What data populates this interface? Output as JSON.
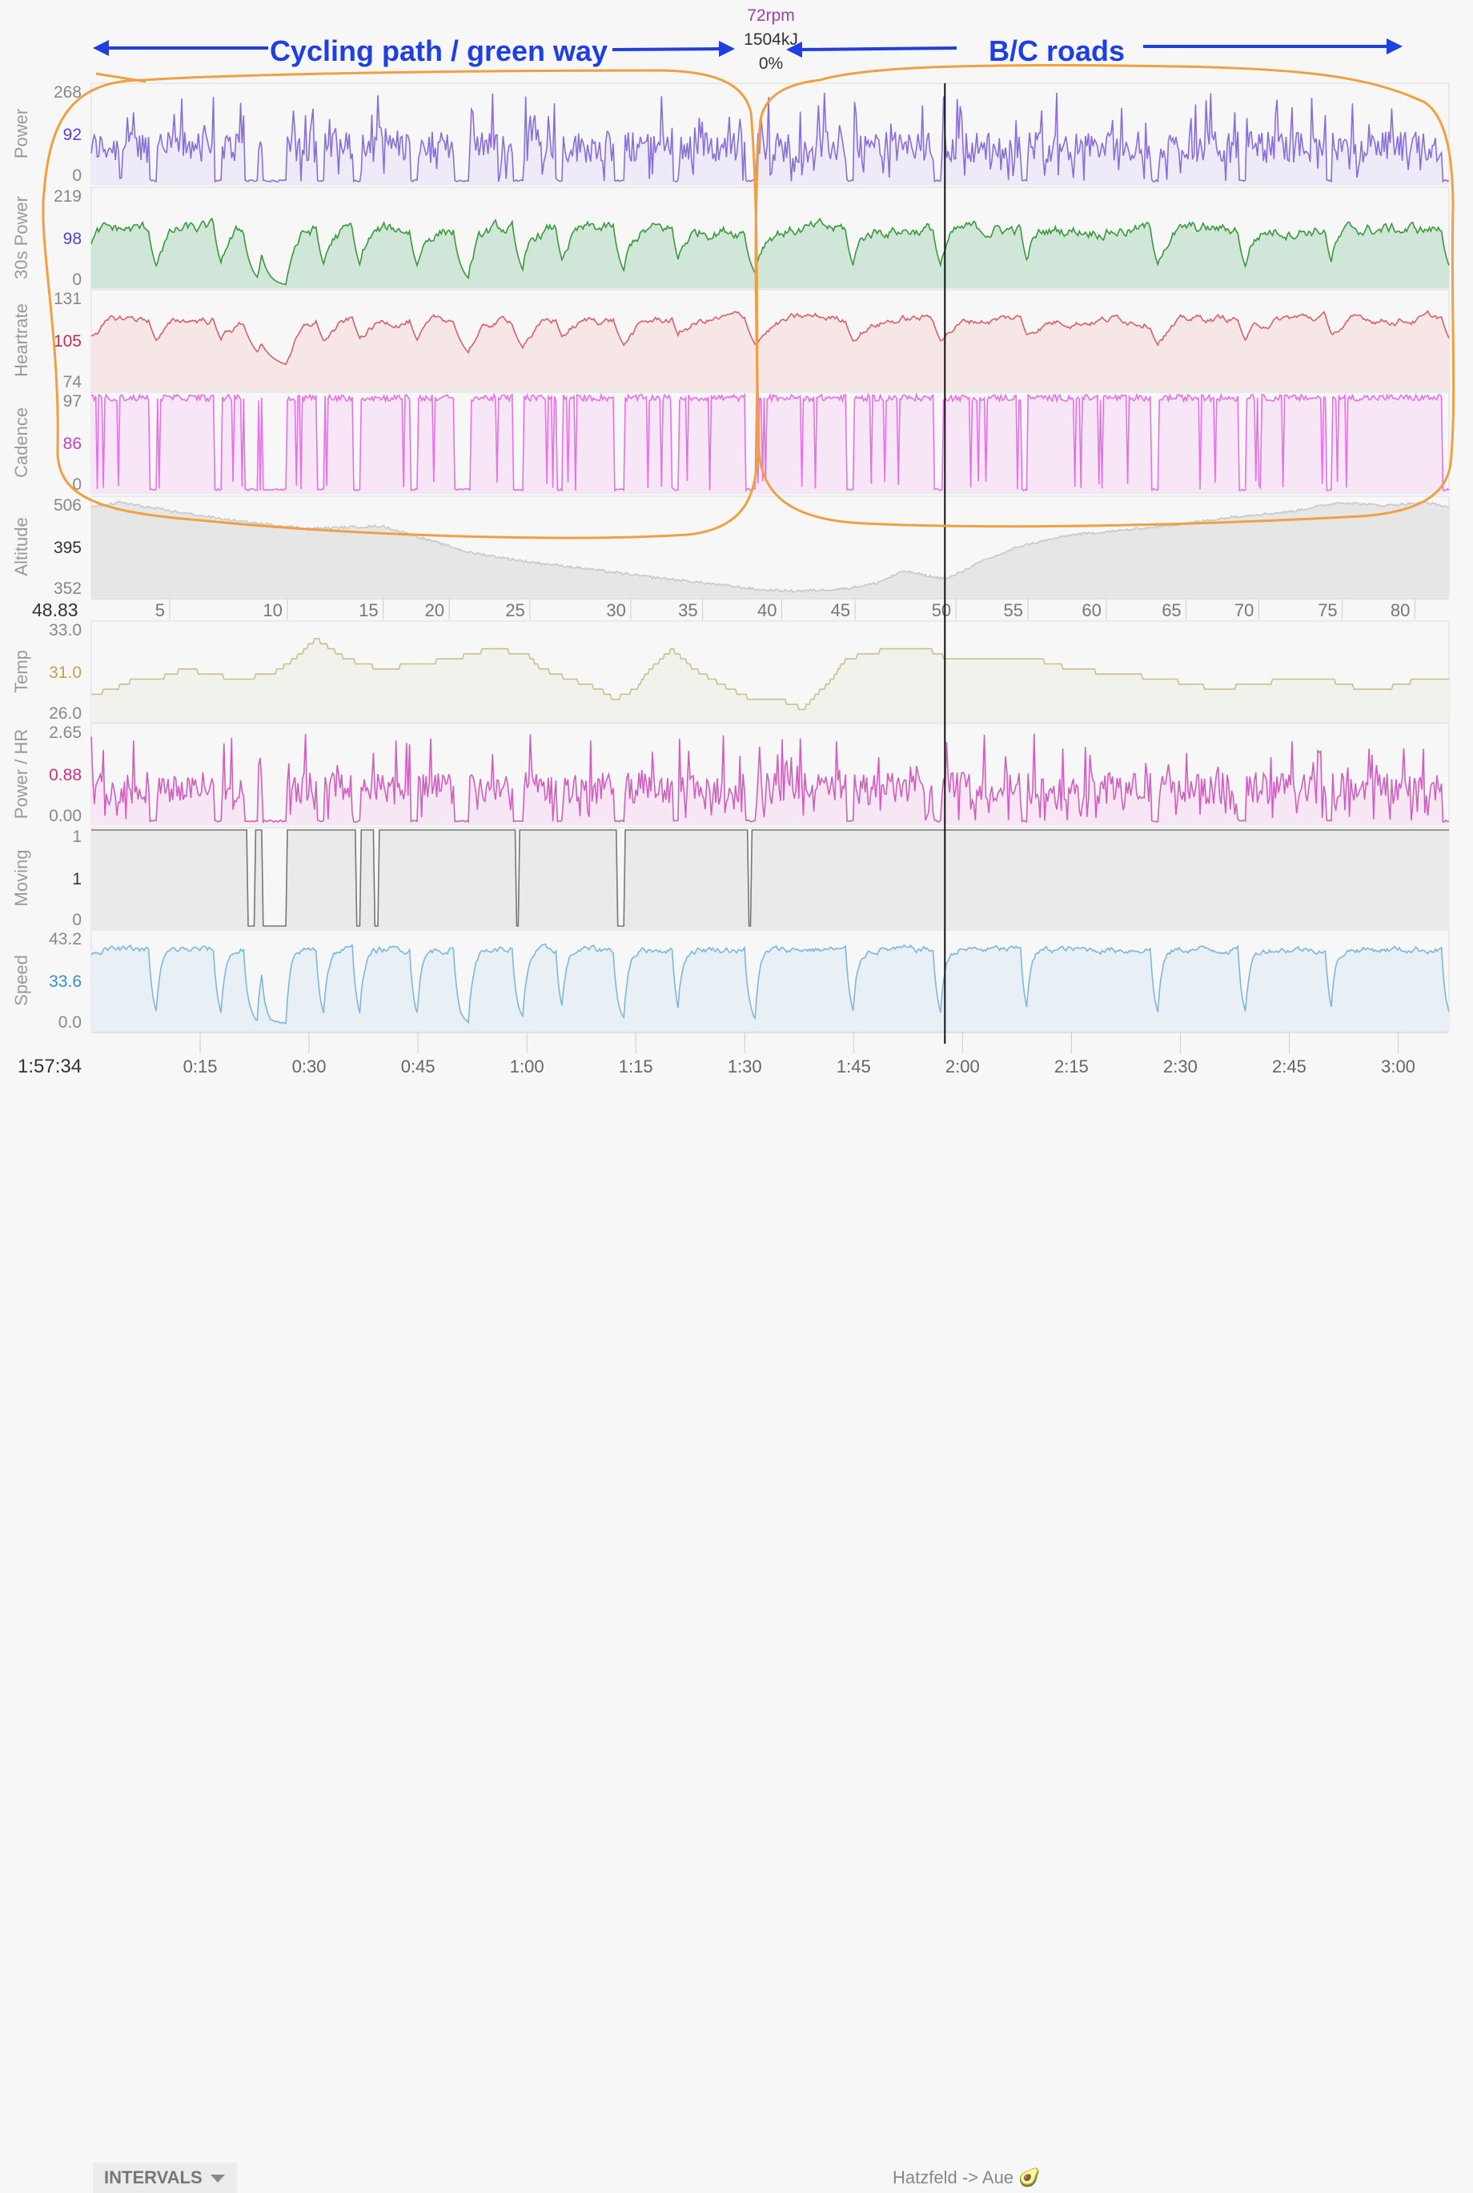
{
  "hover": {
    "time": "1:57:34",
    "distance": "48.83",
    "cadence_readout": "72rpm",
    "energy_readout": "1504kJ",
    "grade_readout": "0%"
  },
  "annotations": {
    "left": "Cycling path / green way",
    "right": "B/C roads",
    "colors": {
      "text": "#1f3fe0",
      "circle": "#f0a040"
    }
  },
  "footer": {
    "intervals_label": "INTERVALS",
    "route_label": "Hatzfeld -> Aue 🥑"
  },
  "chart_data": {
    "type": "line",
    "duration_minutes": 187,
    "hover_minutes": 117.57,
    "x_ticks": [
      "0:15",
      "0:30",
      "0:45",
      "1:00",
      "1:15",
      "1:30",
      "1:45",
      "2:00",
      "2:15",
      "2:30",
      "2:45",
      "3:00"
    ],
    "x_tick_minutes": [
      15,
      30,
      45,
      60,
      75,
      90,
      105,
      120,
      135,
      150,
      165,
      180
    ],
    "distance_ticks": [
      "5",
      "10",
      "15",
      "20",
      "25",
      "30",
      "35",
      "40",
      "45",
      "50",
      "55",
      "60",
      "65",
      "70",
      "75",
      "80"
    ],
    "distance_tick_minutes": [
      10.8,
      27,
      40.2,
      49.3,
      60.4,
      74.3,
      84.2,
      95.1,
      105.2,
      119.1,
      129,
      139.8,
      150.8,
      160.8,
      172.3,
      182.3
    ],
    "panels": [
      {
        "title": "Power",
        "ticks": [
          "268",
          "92",
          "0"
        ],
        "current": "92",
        "ylim": [
          0,
          268
        ],
        "color": "#8a6fd8",
        "fill": "#eeeaf8",
        "current_color": "#5b3fc4",
        "shape": "spiky",
        "mean": 92
      },
      {
        "title": "30s Power",
        "ticks": [
          "219",
          "98",
          "0"
        ],
        "current": "98",
        "ylim": [
          0,
          219
        ],
        "color": "#3a9a3a",
        "fill": "#cfe6d8",
        "current_color": "#5b3fc4",
        "shape": "smooth",
        "mean": 98
      },
      {
        "title": "Heartrate",
        "ticks": [
          "131",
          "105",
          "74"
        ],
        "current": "105",
        "ylim": [
          74,
          131
        ],
        "color": "#d9606a",
        "fill": "#f7e6e6",
        "current_color": "#c0304a",
        "shape": "hr",
        "mean": 105
      },
      {
        "title": "Cadence",
        "ticks": [
          "97",
          "86",
          "0"
        ],
        "current": "86",
        "ylim": [
          0,
          97
        ],
        "color": "#e870e8",
        "fill": "#f7e6f5",
        "current_color": "#c040c8",
        "shape": "cadence",
        "mean": 86
      },
      {
        "title": "Altitude",
        "ticks": [
          "506",
          "395",
          "352"
        ],
        "current": "395",
        "ylim": [
          352,
          506
        ],
        "color": "#c8c8c8",
        "fill": "#e6e6e6",
        "current_color": "#333333",
        "shape": "altitude",
        "mean": 395,
        "profile_minutes": [
          0,
          4,
          10,
          20,
          30,
          40,
          45,
          52,
          60,
          68,
          75,
          82,
          88,
          92,
          96,
          100,
          104,
          108,
          112,
          116,
          118,
          122,
          128,
          135,
          142,
          150,
          158,
          165,
          172,
          178,
          184,
          187
        ],
        "profile_values": [
          492,
          500,
          488,
          470,
          458,
          462,
          445,
          420,
          405,
          394,
          383,
          374,
          366,
          360,
          358,
          359,
          362,
          370,
          390,
          380,
          378,
          402,
          430,
          448,
          455,
          465,
          478,
          485,
          500,
          495,
          500,
          492
        ]
      },
      {
        "title": "Temp",
        "ticks": [
          "33.0",
          "31.0",
          "26.0"
        ],
        "current": "31.0",
        "ylim": [
          25,
          34.5
        ],
        "color": "#c9c08a",
        "fill": "#f2f2ec",
        "current_color": "#b8a84a",
        "shape": "temp",
        "mean": 31.0,
        "profile_minutes": [
          0,
          3,
          6,
          9,
          13,
          20,
          25,
          28,
          31,
          35,
          40,
          50,
          55,
          60,
          62,
          70,
          72,
          75,
          77,
          80,
          83,
          88,
          91,
          95,
          98,
          102,
          104,
          110,
          115,
          118,
          120,
          130,
          135,
          148,
          155,
          165,
          170,
          175,
          178,
          183,
          187
        ],
        "profile_values": [
          27.5,
          28,
          29,
          29,
          30,
          29,
          29.5,
          31,
          33,
          31,
          30,
          31,
          32,
          31.5,
          30,
          28,
          27,
          28,
          30,
          32,
          30,
          28,
          27,
          27,
          26,
          29,
          31,
          32,
          32,
          31,
          31,
          31,
          30,
          29,
          28,
          29,
          29,
          28,
          28,
          29,
          29
        ]
      },
      {
        "title": "Power / HR",
        "ticks": [
          "2.65",
          "0.88",
          "0.00"
        ],
        "current": "0.88",
        "ylim": [
          0,
          2.65
        ],
        "color": "#d060c0",
        "fill": "#f7e6f3",
        "current_color": "#d03080",
        "shape": "spiky",
        "mean": 0.88
      },
      {
        "title": "Moving",
        "ticks": [
          "1",
          "1",
          "0"
        ],
        "current": "1",
        "ylim": [
          0,
          1
        ],
        "color": "#777777",
        "fill": "#eaeaea",
        "current_color": "#333333",
        "shape": "moving",
        "mean": 1,
        "dropouts_minutes": [
          [
            21.5,
            22.5
          ],
          [
            23.5,
            27
          ],
          [
            36.5,
            37
          ],
          [
            39,
            39.5
          ],
          [
            58.5,
            59
          ],
          [
            72.5,
            73.5
          ],
          [
            90.5,
            91
          ]
        ]
      },
      {
        "title": "Speed",
        "ticks": [
          "43.2",
          "33.6",
          "0.0"
        ],
        "current": "33.6",
        "ylim": [
          0,
          43.2
        ],
        "color": "#7ab8e0",
        "fill": "#e8f0f6",
        "current_color": "#3a8ad0",
        "shape": "speed",
        "mean": 33.6
      }
    ]
  }
}
